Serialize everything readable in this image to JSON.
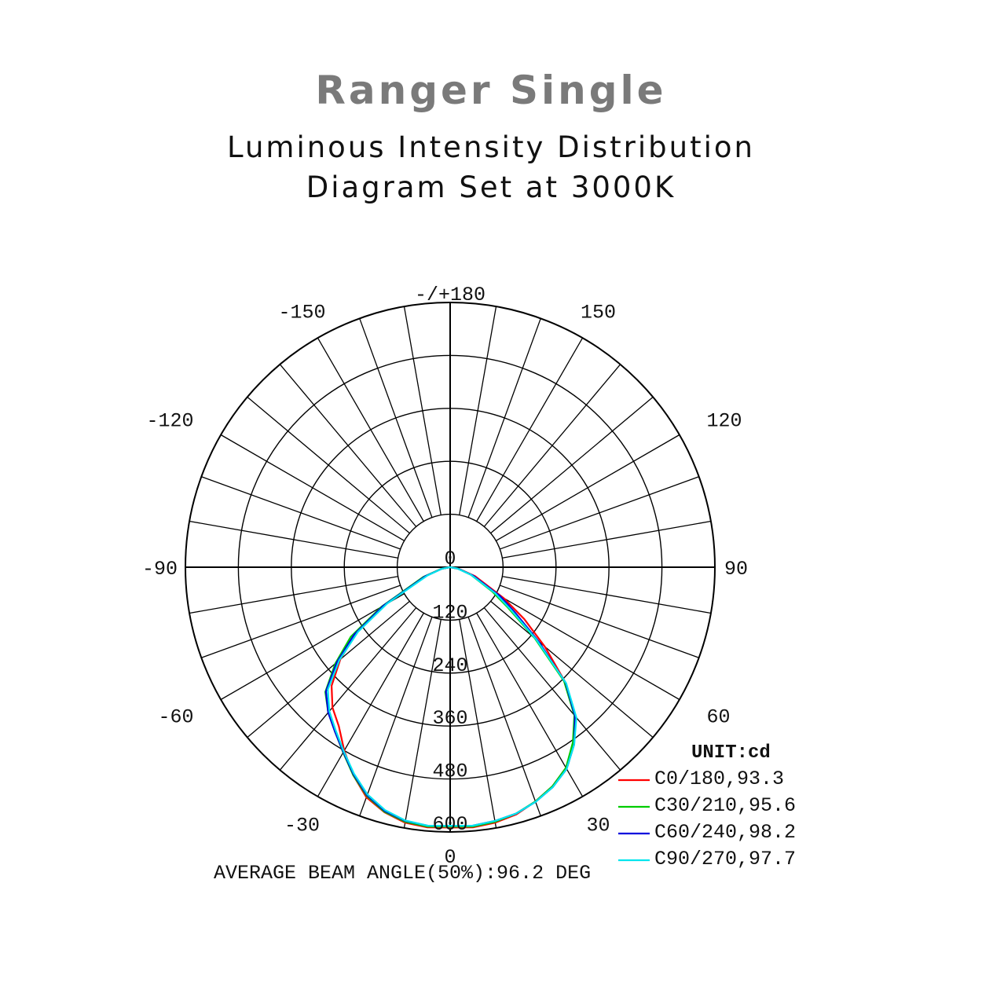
{
  "header": {
    "title": "Ranger Single",
    "subtitle_line1": "Luminous Intensity Distribution",
    "subtitle_line2": "Diagram Set at 3000K"
  },
  "chart_data": {
    "type": "polar",
    "unit_label": "UNIT:cd",
    "footer": "AVERAGE BEAM ANGLE(50%):96.2 DEG",
    "radial_max": 600,
    "radial_ticks": [
      120,
      240,
      360,
      480,
      600
    ],
    "radial_tick_labels": [
      "120",
      "240",
      "360",
      "480",
      "600"
    ],
    "angle_labels": [
      {
        "angle": 180,
        "text": "-/+180"
      },
      {
        "angle": -150,
        "text": "-150"
      },
      {
        "angle": 150,
        "text": "150"
      },
      {
        "angle": -120,
        "text": "-120"
      },
      {
        "angle": 120,
        "text": "120"
      },
      {
        "angle": -90,
        "text": "-90"
      },
      {
        "angle": 90,
        "text": "90"
      },
      {
        "angle": -60,
        "text": "-60"
      },
      {
        "angle": 60,
        "text": "60"
      },
      {
        "angle": -30,
        "text": "-30"
      },
      {
        "angle": 30,
        "text": "30"
      },
      {
        "angle": 0,
        "text": "0"
      }
    ],
    "center_label": "0",
    "angles_deg": [
      -90,
      -80,
      -70,
      -60,
      -55,
      -50,
      -45,
      -40,
      -35,
      -30,
      -25,
      -20,
      -15,
      -10,
      -5,
      0,
      5,
      10,
      15,
      20,
      25,
      30,
      35,
      40,
      45,
      50,
      55,
      60,
      70,
      80,
      90
    ],
    "series": [
      {
        "name": "C0/180,93.3",
        "color": "#ff0000",
        "values": [
          0,
          20,
          60,
          170,
          260,
          325,
          380,
          415,
          440,
          480,
          520,
          555,
          575,
          588,
          592,
          590,
          592,
          588,
          580,
          565,
          548,
          525,
          488,
          442,
          370,
          280,
          205,
          140,
          60,
          20,
          0
        ]
      },
      {
        "name": "C30/210,95.6",
        "color": "#00cc00",
        "values": [
          0,
          20,
          65,
          180,
          275,
          340,
          400,
          430,
          455,
          485,
          520,
          552,
          574,
          586,
          590,
          588,
          590,
          586,
          578,
          565,
          548,
          525,
          485,
          438,
          365,
          250,
          160,
          110,
          50,
          18,
          0
        ]
      },
      {
        "name": "C60/240,98.2",
        "color": "#0000dd",
        "values": [
          0,
          18,
          60,
          175,
          265,
          335,
          398,
          430,
          455,
          484,
          518,
          550,
          572,
          584,
          588,
          586,
          588,
          584,
          578,
          566,
          550,
          528,
          490,
          440,
          370,
          262,
          180,
          130,
          55,
          18,
          0
        ]
      },
      {
        "name": "C90/270,97.7",
        "color": "#00e5ee",
        "values": [
          0,
          18,
          55,
          165,
          255,
          328,
          392,
          426,
          452,
          482,
          516,
          548,
          570,
          583,
          588,
          586,
          588,
          584,
          578,
          566,
          550,
          528,
          490,
          445,
          372,
          255,
          168,
          118,
          50,
          16,
          0
        ]
      }
    ]
  }
}
